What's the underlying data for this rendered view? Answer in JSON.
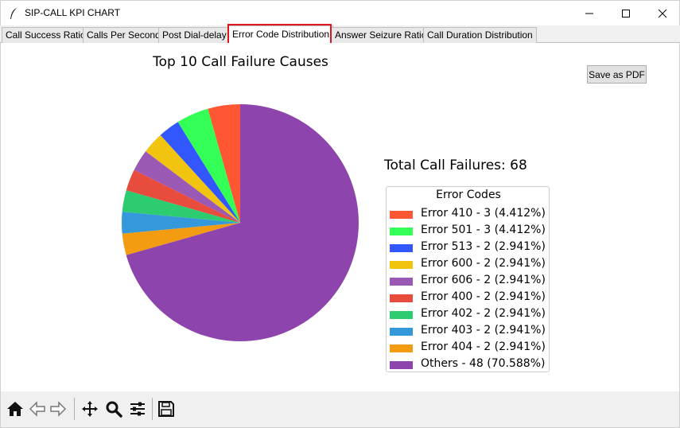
{
  "window": {
    "title": "SIP-CALL KPI CHART"
  },
  "tabs": [
    {
      "label": "Call Success Ratio"
    },
    {
      "label": "Calls Per Second"
    },
    {
      "label": "Post Dial-delay"
    },
    {
      "label": "Error Code Distribution"
    },
    {
      "label": "Answer Seizure Ratio"
    },
    {
      "label": "Call Duration Distribution"
    }
  ],
  "active_tab": "Error Code Distribution",
  "actions": {
    "save_pdf_label": "Save as PDF"
  },
  "total_label": "Total Call Failures: 68",
  "icons": {
    "app": "feather-icon",
    "minimize": "minimize-icon",
    "maximize": "maximize-icon",
    "close": "close-icon",
    "home": "home-icon",
    "back": "back-arrow-icon",
    "forward": "forward-arrow-icon",
    "pan": "pan-icon",
    "zoom": "zoom-icon",
    "configure": "configure-subplots-icon",
    "save": "save-icon"
  },
  "colors": {
    "highlight_box": "#e0141e"
  },
  "chart_data": {
    "type": "pie",
    "title": "Top 10 Call Failure Causes",
    "legend_title": "Error Codes",
    "legend_position": "right",
    "start_angle_deg": 90,
    "direction": "counterclockwise",
    "slices": [
      {
        "label": "Error 410 - 3 (4.412%)",
        "value": 3,
        "color": "#ff5733"
      },
      {
        "label": "Error 501 - 3 (4.412%)",
        "value": 3,
        "color": "#33ff57"
      },
      {
        "label": "Error 513 - 2 (2.941%)",
        "value": 2,
        "color": "#3357ff"
      },
      {
        "label": "Error 600 - 2 (2.941%)",
        "value": 2,
        "color": "#f1c40f"
      },
      {
        "label": "Error 606 - 2 (2.941%)",
        "value": 2,
        "color": "#9b59b6"
      },
      {
        "label": "Error 400 - 2 (2.941%)",
        "value": 2,
        "color": "#e74c3c"
      },
      {
        "label": "Error 402 - 2 (2.941%)",
        "value": 2,
        "color": "#2ecc71"
      },
      {
        "label": "Error 403 - 2 (2.941%)",
        "value": 2,
        "color": "#3498db"
      },
      {
        "label": "Error 404 - 2 (2.941%)",
        "value": 2,
        "color": "#f39c12"
      },
      {
        "label": "Others - 48 (70.588%)",
        "value": 48,
        "color": "#8e44ad"
      }
    ]
  }
}
